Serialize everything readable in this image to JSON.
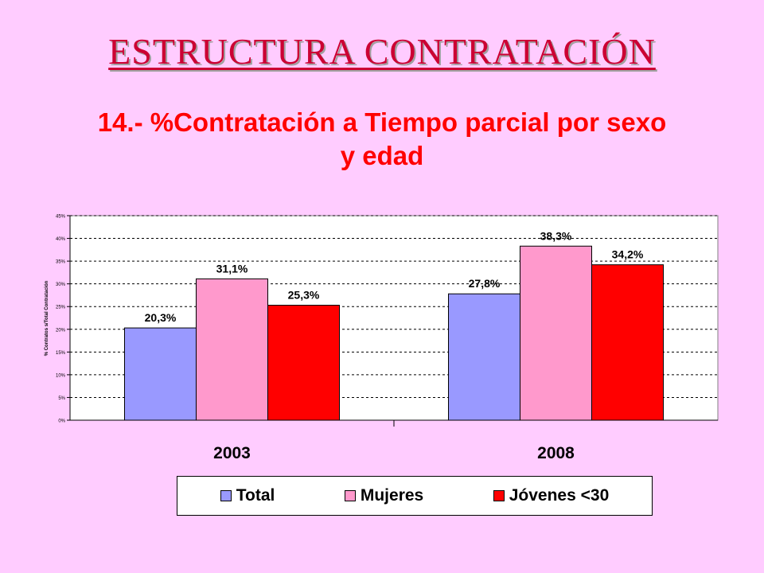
{
  "slide": {
    "title": "ESTRUCTURA CONTRATACIÓN"
  },
  "chart_data": {
    "type": "bar",
    "title": "14.- %Contratación a Tiempo parcial por sexo y edad",
    "ylabel": "% Contratos s/Total Contratación",
    "categories": [
      "2003",
      "2008"
    ],
    "ylim": [
      0,
      45
    ],
    "yticks": [
      "0%",
      "5%",
      "10%",
      "15%",
      "20%",
      "25%",
      "30%",
      "35%",
      "40%",
      "45%"
    ],
    "grid": true,
    "legend_position": "bottom",
    "series": [
      {
        "name": "Total",
        "values": [
          20.3,
          27.8
        ],
        "labels": [
          "20,3%",
          "27,8%"
        ],
        "color": "#9999FF"
      },
      {
        "name": "Mujeres",
        "values": [
          31.1,
          38.3
        ],
        "labels": [
          "31,1%",
          "38,3%"
        ],
        "color": "#FF99CC"
      },
      {
        "name": "Jóvenes <30",
        "values": [
          25.3,
          34.2
        ],
        "labels": [
          "25,3%",
          "34,2%"
        ],
        "color": "#FF0000"
      }
    ]
  }
}
